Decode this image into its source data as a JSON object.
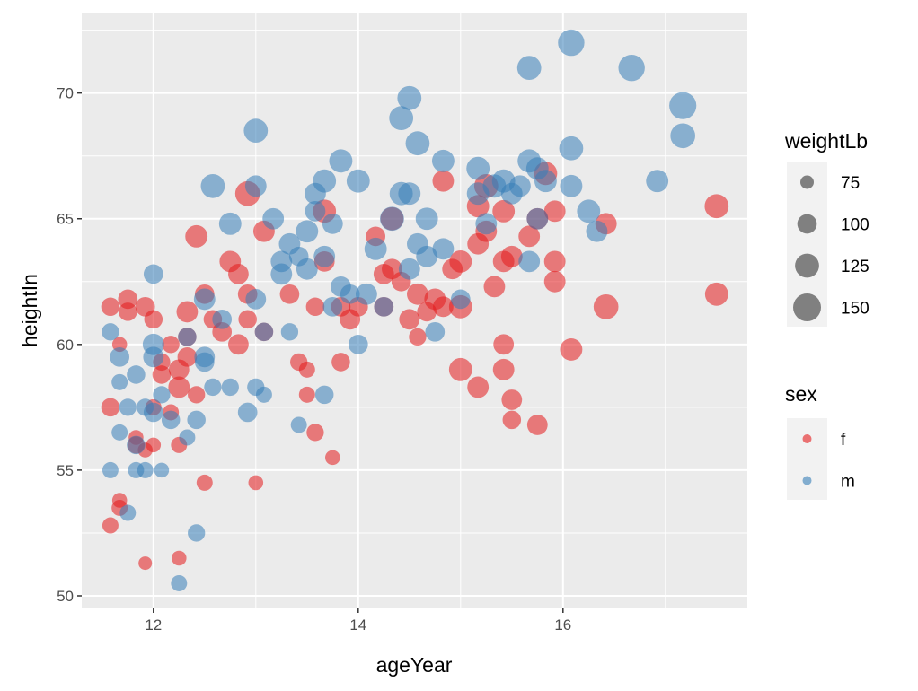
{
  "chart_data": {
    "type": "scatter",
    "xlabel": "ageYear",
    "ylabel": "heightIn",
    "xlim": [
      11.3,
      17.8
    ],
    "ylim": [
      49.5,
      73.2
    ],
    "x_ticks": [
      12,
      14,
      16
    ],
    "y_ticks": [
      50,
      55,
      60,
      65,
      70
    ],
    "grid": true,
    "legend_placement": "right",
    "colors": {
      "f": "#e41a1c",
      "m": "#377eb8",
      "panel": "#ebebeb",
      "grid": "#ffffff",
      "size_key": "#333333"
    },
    "size_legend": {
      "title": "weightLb",
      "values": [
        75,
        100,
        125,
        150
      ]
    },
    "color_legend": {
      "title": "sex",
      "entries": [
        {
          "key": "f",
          "label": "f"
        },
        {
          "key": "m",
          "label": "m"
        }
      ]
    },
    "series": [
      {
        "name": "f",
        "points": [
          [
            11.58,
            61.5,
            95
          ],
          [
            11.58,
            57.5,
            95
          ],
          [
            11.58,
            52.8,
            85
          ],
          [
            11.67,
            53.8,
            80
          ],
          [
            11.67,
            53.5,
            85
          ],
          [
            11.67,
            60.0,
            80
          ],
          [
            11.75,
            61.8,
            100
          ],
          [
            11.75,
            61.3,
            95
          ],
          [
            11.83,
            56.0,
            90
          ],
          [
            11.83,
            56.3,
            80
          ],
          [
            11.92,
            51.3,
            70
          ],
          [
            11.92,
            55.8,
            80
          ],
          [
            11.92,
            61.5,
            100
          ],
          [
            12.0,
            61.0,
            95
          ],
          [
            12.0,
            57.5,
            85
          ],
          [
            12.0,
            56.0,
            80
          ],
          [
            12.08,
            59.3,
            90
          ],
          [
            12.08,
            58.8,
            95
          ],
          [
            12.17,
            60.0,
            90
          ],
          [
            12.17,
            57.3,
            85
          ],
          [
            12.25,
            51.5,
            80
          ],
          [
            12.25,
            56.0,
            85
          ],
          [
            12.25,
            58.3,
            110
          ],
          [
            12.25,
            59.0,
            105
          ],
          [
            12.33,
            61.3,
            110
          ],
          [
            12.33,
            59.5,
            100
          ],
          [
            12.33,
            60.3,
            95
          ],
          [
            12.42,
            64.3,
            115
          ],
          [
            12.42,
            58.0,
            90
          ],
          [
            12.5,
            54.5,
            85
          ],
          [
            12.5,
            62.0,
            100
          ],
          [
            12.58,
            61.0,
            95
          ],
          [
            12.67,
            60.5,
            100
          ],
          [
            12.75,
            63.3,
            110
          ],
          [
            12.83,
            60.0,
            105
          ],
          [
            12.83,
            62.8,
            105
          ],
          [
            12.92,
            66.0,
            130
          ],
          [
            12.92,
            62.0,
            100
          ],
          [
            12.92,
            61.0,
            95
          ],
          [
            13.0,
            54.5,
            80
          ],
          [
            13.08,
            64.5,
            110
          ],
          [
            13.08,
            60.5,
            95
          ],
          [
            13.33,
            62.0,
            100
          ],
          [
            13.42,
            59.3,
            90
          ],
          [
            13.5,
            59.0,
            85
          ],
          [
            13.5,
            58.0,
            85
          ],
          [
            13.58,
            56.5,
            90
          ],
          [
            13.58,
            61.5,
            95
          ],
          [
            13.67,
            63.3,
            105
          ],
          [
            13.67,
            65.3,
            120
          ],
          [
            13.75,
            55.5,
            80
          ],
          [
            13.83,
            59.3,
            95
          ],
          [
            13.83,
            61.5,
            100
          ],
          [
            13.92,
            61.0,
            105
          ],
          [
            14.0,
            61.5,
            100
          ],
          [
            14.17,
            64.3,
            100
          ],
          [
            14.25,
            62.8,
            105
          ],
          [
            14.25,
            61.5,
            100
          ],
          [
            14.33,
            65.0,
            120
          ],
          [
            14.33,
            63.0,
            105
          ],
          [
            14.42,
            62.5,
            100
          ],
          [
            14.5,
            61.0,
            105
          ],
          [
            14.58,
            60.3,
            90
          ],
          [
            14.58,
            62.0,
            110
          ],
          [
            14.67,
            61.3,
            100
          ],
          [
            14.75,
            61.8,
            110
          ],
          [
            14.83,
            66.5,
            110
          ],
          [
            14.83,
            61.5,
            105
          ],
          [
            14.92,
            63.0,
            105
          ],
          [
            15.0,
            63.3,
            115
          ],
          [
            15.0,
            59.0,
            120
          ],
          [
            15.0,
            61.5,
            120
          ],
          [
            15.17,
            58.3,
            110
          ],
          [
            15.17,
            64.0,
            110
          ],
          [
            15.17,
            65.5,
            115
          ],
          [
            15.25,
            66.3,
            125
          ],
          [
            15.25,
            64.5,
            110
          ],
          [
            15.33,
            62.3,
            110
          ],
          [
            15.42,
            65.3,
            115
          ],
          [
            15.42,
            63.3,
            110
          ],
          [
            15.42,
            60.0,
            105
          ],
          [
            15.42,
            59.0,
            110
          ],
          [
            15.5,
            57.8,
            105
          ],
          [
            15.5,
            57.0,
            95
          ],
          [
            15.5,
            63.5,
            110
          ],
          [
            15.67,
            64.3,
            110
          ],
          [
            15.75,
            65.0,
            110
          ],
          [
            15.75,
            56.8,
            105
          ],
          [
            15.83,
            66.8,
            120
          ],
          [
            15.92,
            62.5,
            110
          ],
          [
            15.92,
            63.3,
            110
          ],
          [
            15.92,
            65.3,
            110
          ],
          [
            16.08,
            59.8,
            115
          ],
          [
            16.42,
            64.8,
            110
          ],
          [
            16.42,
            61.5,
            130
          ],
          [
            17.5,
            65.5,
            125
          ],
          [
            17.5,
            62.0,
            120
          ]
        ]
      },
      {
        "name": "m",
        "points": [
          [
            11.58,
            55.0,
            85
          ],
          [
            11.58,
            60.5,
            90
          ],
          [
            11.67,
            56.5,
            85
          ],
          [
            11.67,
            58.5,
            85
          ],
          [
            11.67,
            59.5,
            100
          ],
          [
            11.75,
            53.3,
            85
          ],
          [
            11.75,
            57.5,
            90
          ],
          [
            11.83,
            55.0,
            85
          ],
          [
            11.83,
            58.8,
            95
          ],
          [
            11.83,
            56.0,
            95
          ],
          [
            11.92,
            57.5,
            90
          ],
          [
            11.92,
            55.0,
            85
          ],
          [
            12.0,
            62.8,
            100
          ],
          [
            12.0,
            60.0,
            110
          ],
          [
            12.0,
            59.5,
            105
          ],
          [
            12.0,
            57.3,
            100
          ],
          [
            12.08,
            58.0,
            90
          ],
          [
            12.08,
            55.0,
            80
          ],
          [
            12.17,
            57.0,
            95
          ],
          [
            12.25,
            50.5,
            85
          ],
          [
            12.33,
            60.3,
            95
          ],
          [
            12.33,
            56.3,
            85
          ],
          [
            12.42,
            57.0,
            95
          ],
          [
            12.42,
            52.5,
            90
          ],
          [
            12.5,
            61.8,
            110
          ],
          [
            12.5,
            59.3,
            100
          ],
          [
            12.5,
            59.5,
            105
          ],
          [
            12.58,
            66.3,
            125
          ],
          [
            12.58,
            58.3,
            90
          ],
          [
            12.67,
            61.0,
            100
          ],
          [
            12.75,
            64.8,
            115
          ],
          [
            12.75,
            58.3,
            90
          ],
          [
            12.92,
            57.3,
            100
          ],
          [
            13.0,
            68.5,
            125
          ],
          [
            13.0,
            66.3,
            110
          ],
          [
            13.0,
            61.8,
            105
          ],
          [
            13.0,
            58.3,
            90
          ],
          [
            13.08,
            58.0,
            85
          ],
          [
            13.08,
            60.5,
            95
          ],
          [
            13.17,
            65.0,
            110
          ],
          [
            13.25,
            63.3,
            110
          ],
          [
            13.25,
            62.8,
            110
          ],
          [
            13.33,
            64.0,
            110
          ],
          [
            13.33,
            60.5,
            90
          ],
          [
            13.42,
            56.8,
            85
          ],
          [
            13.42,
            63.5,
            100
          ],
          [
            13.5,
            64.5,
            115
          ],
          [
            13.5,
            63.0,
            110
          ],
          [
            13.58,
            66.0,
            110
          ],
          [
            13.58,
            65.3,
            105
          ],
          [
            13.67,
            66.5,
            120
          ],
          [
            13.67,
            63.5,
            110
          ],
          [
            13.67,
            58.0,
            95
          ],
          [
            13.75,
            64.8,
            105
          ],
          [
            13.75,
            61.5,
            100
          ],
          [
            13.83,
            67.3,
            120
          ],
          [
            13.83,
            62.3,
            105
          ],
          [
            13.92,
            62.0,
            100
          ],
          [
            14.0,
            66.5,
            120
          ],
          [
            14.0,
            60.0,
            100
          ],
          [
            14.08,
            62.0,
            110
          ],
          [
            14.17,
            63.8,
            115
          ],
          [
            14.25,
            61.5,
            100
          ],
          [
            14.33,
            65.0,
            125
          ],
          [
            14.42,
            69.0,
            125
          ],
          [
            14.42,
            66.0,
            120
          ],
          [
            14.5,
            69.8,
            125
          ],
          [
            14.5,
            66.0,
            115
          ],
          [
            14.5,
            63.0,
            110
          ],
          [
            14.58,
            68.0,
            125
          ],
          [
            14.58,
            64.0,
            110
          ],
          [
            14.67,
            65.0,
            115
          ],
          [
            14.67,
            63.5,
            110
          ],
          [
            14.75,
            60.5,
            100
          ],
          [
            14.83,
            67.3,
            115
          ],
          [
            14.83,
            63.8,
            110
          ],
          [
            15.0,
            61.8,
            100
          ],
          [
            15.17,
            67.0,
            120
          ],
          [
            15.17,
            66.0,
            115
          ],
          [
            15.25,
            64.8,
            110
          ],
          [
            15.33,
            66.3,
            120
          ],
          [
            15.42,
            66.5,
            120
          ],
          [
            15.5,
            66.0,
            110
          ],
          [
            15.58,
            66.3,
            110
          ],
          [
            15.67,
            71.0,
            125
          ],
          [
            15.67,
            67.3,
            120
          ],
          [
            15.67,
            63.3,
            110
          ],
          [
            15.75,
            67.0,
            115
          ],
          [
            15.75,
            65.0,
            110
          ],
          [
            15.83,
            66.5,
            115
          ],
          [
            16.08,
            72.0,
            140
          ],
          [
            16.08,
            67.8,
            125
          ],
          [
            16.08,
            66.3,
            115
          ],
          [
            16.25,
            65.3,
            120
          ],
          [
            16.33,
            64.5,
            110
          ],
          [
            16.67,
            71.0,
            140
          ],
          [
            16.92,
            66.5,
            115
          ],
          [
            17.17,
            69.5,
            145
          ],
          [
            17.17,
            68.3,
            130
          ]
        ]
      }
    ]
  }
}
